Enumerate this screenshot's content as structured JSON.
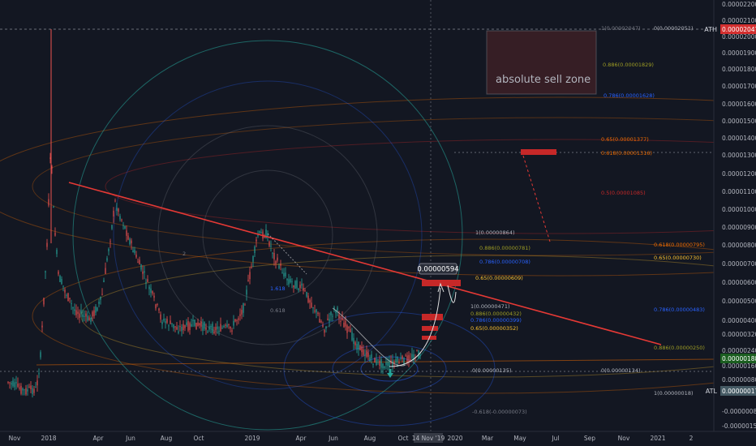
{
  "chart_data": {
    "type": "candlestick",
    "title": "",
    "xlabel": "",
    "ylabel": "",
    "ylim": [
      -1.55e-06,
      2.2e-05
    ],
    "x_ticks": [
      "Nov",
      "2018",
      "Apr",
      "Jun",
      "Aug",
      "Oct",
      "2019",
      "Apr",
      "Jun",
      "Aug",
      "Oct",
      "2020",
      "Mar",
      "May",
      "Jul",
      "Sep",
      "Nov",
      "2021",
      "2"
    ],
    "x_cursor_label": "14 Nov '19",
    "y_ticks": [
      "0.00002200",
      "0.00002100",
      "0.00002000",
      "0.00001900",
      "0.00001800",
      "0.00001700",
      "0.00001600",
      "0.00001500",
      "0.00001400",
      "0.00001300",
      "0.00001200",
      "0.00001100",
      "0.00001000",
      "0.00000900",
      "0.00000800",
      "0.00000700",
      "0.00000600",
      "0.00000500",
      "0.00000400",
      "0.00000320",
      "0.00000240",
      "0.00000160",
      "0.00000080",
      "-0.00000080",
      "-0.00000155"
    ],
    "y_badges": [
      {
        "value": "0.00002047",
        "label": "ATH",
        "color": "#d32f2f"
      },
      {
        "value": "0.00000188",
        "label": "",
        "color": "#1b5e20"
      },
      {
        "value": "0.00000017",
        "label": "ATL",
        "color": "#455a64"
      }
    ],
    "price_callout": "0.00000594",
    "annotation": "absolute sell zone",
    "fib_labels": [
      {
        "text": "1(0.00002047)",
        "color": "#787b86"
      },
      {
        "text": "0(0.00002051)",
        "color": "#b2b5be"
      },
      {
        "text": "0.886(0.00001829)",
        "color": "#9e9d24"
      },
      {
        "text": "0.786(0.00001628)",
        "color": "#2962ff"
      },
      {
        "text": "0.65(0.00001377)",
        "color": "#ef6c00"
      },
      {
        "text": "0.618(0.00001316)",
        "color": "#ef6c00"
      },
      {
        "text": "0.5(0.00001085)",
        "color": "#c62828"
      },
      {
        "text": "1(0.00000864)",
        "color": "#b2b5be"
      },
      {
        "text": "0.886(0.00000781)",
        "color": "#9e9d24"
      },
      {
        "text": "0.786(0.00000708)",
        "color": "#2962ff"
      },
      {
        "text": "0.65(0.00000609)",
        "color": "#fbc02d"
      },
      {
        "text": "0.618(0.00000795)",
        "color": "#ef6c00"
      },
      {
        "text": "0.65(0.00000730)",
        "color": "#fbc02d"
      },
      {
        "text": "1(0.00000471)",
        "color": "#b2b5be"
      },
      {
        "text": "0.886(0.00000432)",
        "color": "#9e9d24"
      },
      {
        "text": "0.786(0.00000399)",
        "color": "#2962ff"
      },
      {
        "text": "0.65(0.00000352)",
        "color": "#fbc02d"
      },
      {
        "text": "0.786(0.00000483)",
        "color": "#2962ff"
      },
      {
        "text": "0.886(0.00000250)",
        "color": "#9e9d24"
      },
      {
        "text": "0(0.00000135)",
        "color": "#b2b5be"
      },
      {
        "text": "0(0.00000134)",
        "color": "#b2b5be"
      },
      {
        "text": "1(0.00000018)",
        "color": "#b2b5be"
      },
      {
        "text": "-0.618(-0.00000073)",
        "color": "#787b86"
      },
      {
        "text": "1.618",
        "color": "#2962ff"
      },
      {
        "text": "0.618",
        "color": "#787b86"
      },
      {
        "text": "2",
        "color": "#787b86"
      }
    ],
    "grid": false,
    "colors": {
      "background": "#131722",
      "up": "#26a69a",
      "down": "#ef5350",
      "trendline": "#e53935",
      "axis_text": "#b2b5be"
    }
  }
}
